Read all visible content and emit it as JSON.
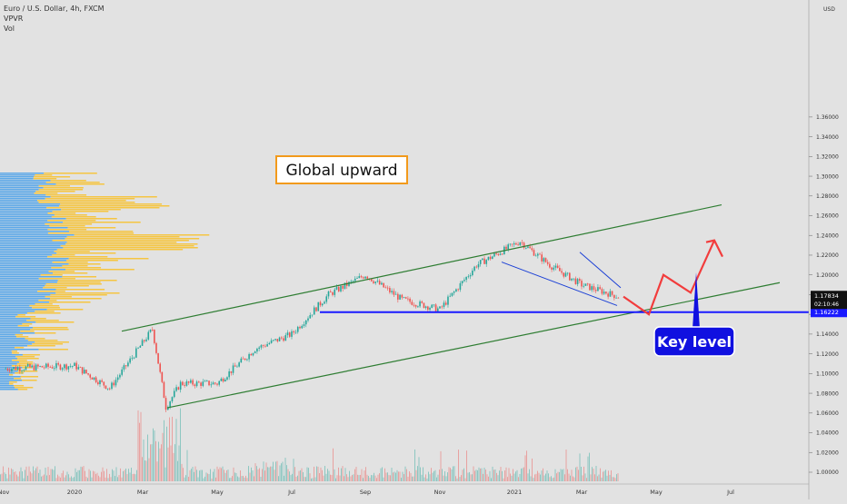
{
  "header": {
    "symbol_line": "Euro / U.S. Dollar, 4h, FXCM",
    "indicator_1": "VPVR",
    "indicator_2": "Vol"
  },
  "price_axis": {
    "currency": "USD",
    "ticks": [
      "1.36000",
      "1.34000",
      "1.32000",
      "1.30000",
      "1.28000",
      "1.26000",
      "1.24000",
      "1.22000",
      "1.20000",
      "1.18000",
      "1.16000",
      "1.14000",
      "1.12000",
      "1.10000",
      "1.08000",
      "1.06000",
      "1.04000",
      "1.02000",
      "1.00000"
    ],
    "current_price": "1.17834",
    "countdown": "02:10:46",
    "key_level_price": "1.16222"
  },
  "time_axis": {
    "labels": [
      "Nov",
      "2020",
      "Mar",
      "May",
      "Jul",
      "Sep",
      "Nov",
      "2021",
      "Mar",
      "May",
      "Jul"
    ]
  },
  "annotations": {
    "global_upward": "Global upward",
    "key_level": "Key level"
  },
  "colors": {
    "background": "#e2e2e2",
    "channel": "#2e7d32",
    "key_level": "#1a1aff",
    "callout_bg": "#1010e0",
    "projection": "#f23c3c",
    "bull": "#26a69a",
    "bear": "#ef5350",
    "vp_blue": "#5ca8e8",
    "vp_yellow": "#f5c542",
    "current_badge": "#111111",
    "label_border": "#f29a1c"
  },
  "chart_data": {
    "type": "line",
    "title": "Euro / U.S. Dollar, 4h, FXCM",
    "x": [
      "2019-11",
      "2020-01",
      "2020-02",
      "2020-03-09",
      "2020-03-20",
      "2020-04",
      "2020-05",
      "2020-06",
      "2020-07",
      "2020-08",
      "2020-09-01",
      "2020-10",
      "2020-11-01",
      "2020-12",
      "2021-01-06",
      "2021-02",
      "2021-03",
      "2021-03-31"
    ],
    "series": [
      {
        "values": [
          1.105,
          1.108,
          1.085,
          1.145,
          1.066,
          1.09,
          1.09,
          1.125,
          1.14,
          1.18,
          1.2,
          1.175,
          1.165,
          1.21,
          1.234,
          1.21,
          1.19,
          1.178
        ]
      }
    ],
    "ylim": [
      0.99,
      1.37
    ],
    "trend_channel": {
      "upper": [
        {
          "x": "2020-02-20",
          "y": 1.145
        },
        {
          "x": "2021-07-20",
          "y": 1.278
        }
      ],
      "lower": [
        {
          "x": "2020-03-20",
          "y": 1.065
        },
        {
          "x": "2021-08-01",
          "y": 1.19
        }
      ]
    },
    "key_level": 1.16222,
    "falling_wedge": [
      [
        1.213,
        1.18
      ],
      [
        1.223,
        1.187
      ]
    ],
    "projection": [
      1.178,
      1.16,
      1.2,
      1.182,
      1.235
    ],
    "volume_profile": "left-side"
  }
}
